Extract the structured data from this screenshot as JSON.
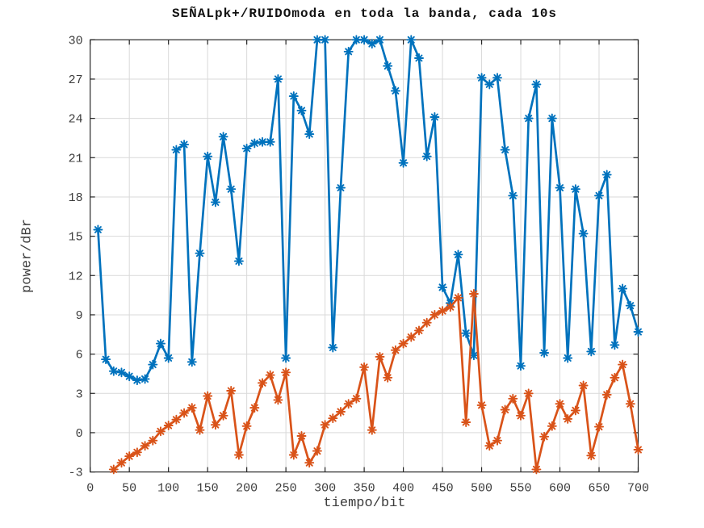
{
  "figure": {
    "background": "#ffffff"
  },
  "chart_data": {
    "type": "line",
    "title": "SEÑALpk+/RUIDOmoda en toda la banda, cada 10s",
    "xlabel": "tiempo/bit",
    "ylabel": "power/dBr",
    "xlim": [
      0,
      700
    ],
    "ylim": [
      -3,
      30
    ],
    "xticks": [
      0,
      50,
      100,
      150,
      200,
      250,
      300,
      350,
      400,
      450,
      500,
      550,
      600,
      650,
      700
    ],
    "yticks": [
      -3,
      0,
      3,
      6,
      9,
      12,
      15,
      18,
      21,
      24,
      27,
      30
    ],
    "grid": true,
    "grid_color": "#d9d9d9",
    "axis_color": "#262626",
    "marker": "asterisk",
    "legend": "none",
    "series": [
      {
        "name": "SEÑALpk+",
        "color": "#0072BD",
        "x": [
          10,
          20,
          30,
          40,
          50,
          60,
          70,
          80,
          90,
          100,
          110,
          120,
          130,
          140,
          150,
          160,
          170,
          180,
          190,
          200,
          210,
          220,
          230,
          240,
          250,
          260,
          270,
          280,
          290,
          300,
          310,
          320,
          330,
          340,
          350,
          360,
          370,
          380,
          390,
          400,
          410,
          420,
          430,
          440,
          450,
          460,
          470,
          480,
          490,
          500,
          510,
          520,
          530,
          540,
          550,
          560,
          570,
          580,
          590,
          600,
          610,
          620,
          630,
          640,
          650,
          660,
          670,
          680,
          690,
          700
        ],
        "y": [
          15.5,
          5.6,
          4.7,
          4.6,
          4.3,
          4.0,
          4.1,
          5.2,
          6.8,
          5.7,
          21.6,
          22.0,
          5.4,
          13.7,
          21.1,
          17.6,
          22.6,
          18.6,
          13.1,
          21.7,
          22.1,
          22.2,
          22.2,
          27.0,
          5.7,
          25.7,
          24.6,
          22.8,
          30.0,
          30.0,
          6.5,
          18.7,
          29.1,
          30.0,
          30.0,
          29.7,
          30.0,
          28.0,
          26.1,
          20.6,
          30.0,
          28.6,
          21.1,
          24.1,
          11.1,
          9.9,
          13.6,
          7.6,
          5.9,
          27.1,
          26.6,
          27.1,
          21.6,
          18.1,
          5.1,
          24.0,
          26.6,
          6.1,
          24.0,
          18.7,
          5.7,
          18.6,
          15.2,
          6.2,
          18.1,
          19.7,
          6.7,
          11.0,
          9.7,
          7.7
        ]
      },
      {
        "name": "RUIDOmoda",
        "color": "#D95319",
        "x": [
          30,
          40,
          50,
          60,
          70,
          80,
          90,
          100,
          110,
          120,
          130,
          140,
          150,
          160,
          170,
          180,
          190,
          200,
          210,
          220,
          230,
          240,
          250,
          260,
          270,
          280,
          290,
          300,
          310,
          320,
          330,
          340,
          350,
          360,
          370,
          380,
          390,
          400,
          410,
          420,
          430,
          440,
          450,
          460,
          470,
          480,
          490,
          500,
          510,
          520,
          530,
          540,
          550,
          560,
          570,
          580,
          590,
          600,
          610,
          620,
          630,
          640,
          650,
          660,
          670,
          680,
          690,
          700
        ],
        "y": [
          -2.8,
          -2.3,
          -1.8,
          -1.5,
          -1.0,
          -0.6,
          0.1,
          0.55,
          1.0,
          1.5,
          1.9,
          0.2,
          2.8,
          0.6,
          1.3,
          3.2,
          -1.7,
          0.5,
          1.9,
          3.8,
          4.4,
          2.5,
          4.6,
          -1.7,
          -0.25,
          -2.3,
          -1.4,
          0.6,
          1.1,
          1.6,
          2.2,
          2.6,
          5.0,
          0.2,
          5.8,
          4.2,
          6.3,
          6.8,
          7.3,
          7.8,
          8.4,
          9.0,
          9.3,
          9.6,
          10.3,
          0.8,
          10.6,
          2.1,
          -1.0,
          -0.6,
          1.75,
          2.6,
          1.3,
          3.0,
          -2.8,
          -0.3,
          0.5,
          2.2,
          1.05,
          1.7,
          3.6,
          -1.75,
          0.45,
          2.9,
          4.2,
          5.2,
          2.2,
          -1.3
        ]
      }
    ]
  }
}
